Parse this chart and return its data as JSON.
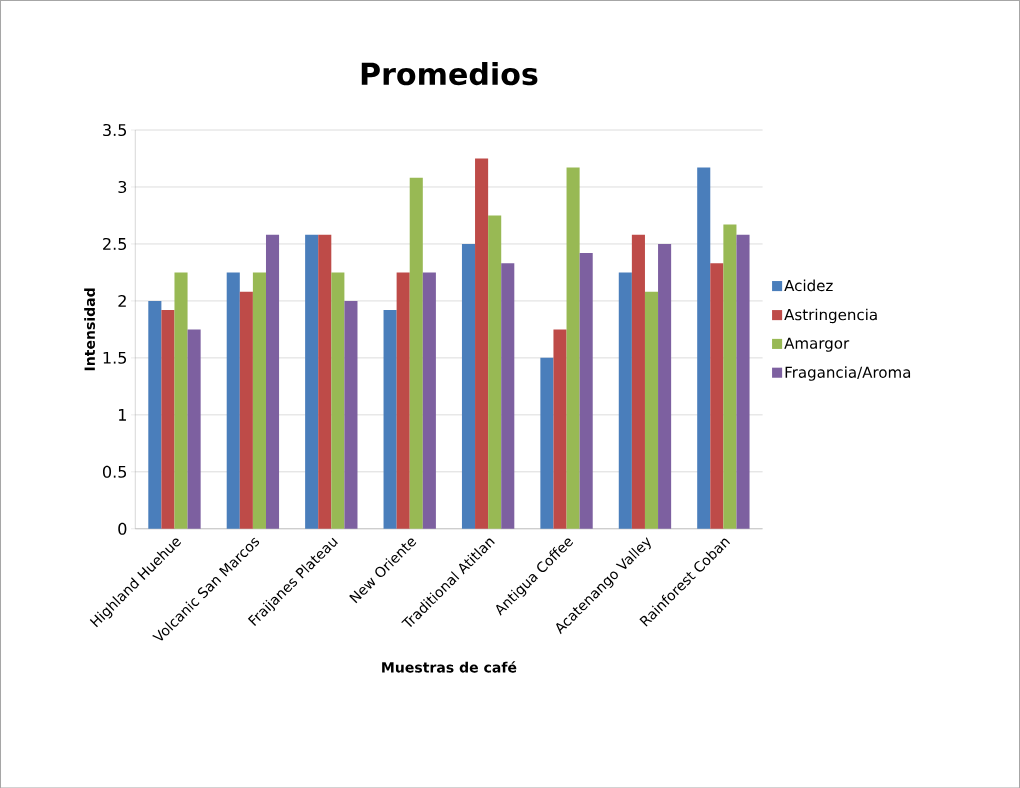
{
  "chart_data": {
    "type": "bar",
    "title": "Promedios",
    "xlabel": "Muestras de café",
    "ylabel": "Intensidad",
    "categories": [
      "Highland Huehue",
      "Volcanic San Marcos",
      "Fraijanes Plateau",
      "New Oriente",
      "Traditional Atitlan",
      "Antigua Coffee",
      "Acatenango Valley",
      "Rainforest Coban"
    ],
    "series": [
      {
        "name": "Acidez",
        "color": "#4a7ebb",
        "values": [
          2.0,
          2.25,
          2.58,
          1.92,
          2.5,
          1.5,
          2.25,
          3.17
        ]
      },
      {
        "name": "Astringencia",
        "color": "#be4b48",
        "values": [
          1.92,
          2.08,
          2.58,
          2.25,
          3.25,
          1.75,
          2.58,
          2.33
        ]
      },
      {
        "name": "Amargor",
        "color": "#98b954",
        "values": [
          2.25,
          2.25,
          2.25,
          3.08,
          2.75,
          3.17,
          2.08,
          2.67
        ]
      },
      {
        "name": "Fragancia/Aroma",
        "color": "#7d60a0",
        "values": [
          1.75,
          2.58,
          2.0,
          2.25,
          2.33,
          2.42,
          2.5,
          2.58
        ]
      }
    ],
    "ylim": [
      0,
      3.5
    ],
    "yticks": [
      0,
      0.5,
      1,
      1.5,
      2,
      2.5,
      3,
      3.5
    ],
    "grid": "y",
    "legend": "right"
  }
}
